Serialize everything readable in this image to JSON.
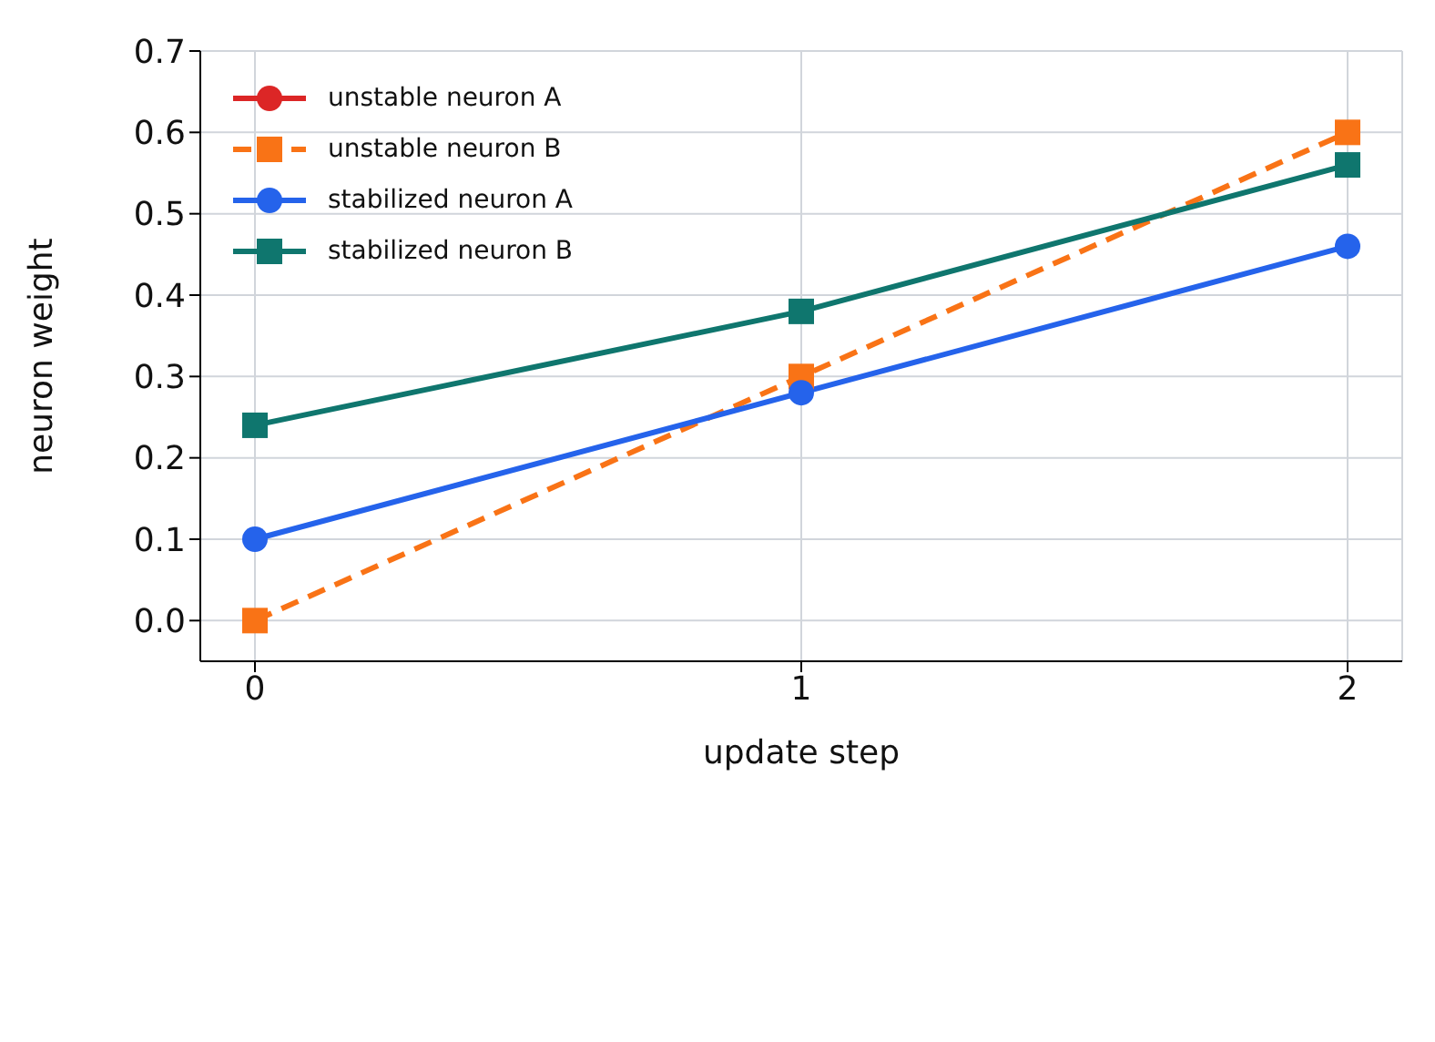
{
  "chart_data": {
    "type": "line",
    "xlabel": "update step",
    "ylabel": "neuron weight",
    "x": [
      0,
      1,
      2
    ],
    "xlim": [
      -0.1,
      2.1
    ],
    "xticks": [
      0,
      1,
      2
    ],
    "ylim": [
      -0.05,
      0.7
    ],
    "yticks": [
      {
        "value": 0,
        "label": "0.0"
      },
      0.1,
      0.2,
      0.3,
      0.4,
      0.5,
      0.6,
      0.7
    ],
    "grid": true,
    "legend": "top left",
    "series": [
      {
        "name": "unstable neuron A",
        "color": "#dc2626",
        "values": [
          null,
          null,
          null
        ],
        "marker": "circle",
        "line_style": "solid"
      },
      {
        "name": "unstable neuron B",
        "color": "#f97316",
        "values": [
          0,
          0.3,
          0.6
        ],
        "marker": "square",
        "line_style": "dashed"
      },
      {
        "name": "stabilized neuron A",
        "color": "#2563eb",
        "values": [
          0.1,
          0.28,
          0.46
        ],
        "marker": "circle",
        "line_style": "solid"
      },
      {
        "name": "stabilized neuron B",
        "color": "#0f766e",
        "values": [
          0.24,
          0.38,
          0.56
        ],
        "marker": "square",
        "line_style": "solid"
      }
    ]
  }
}
